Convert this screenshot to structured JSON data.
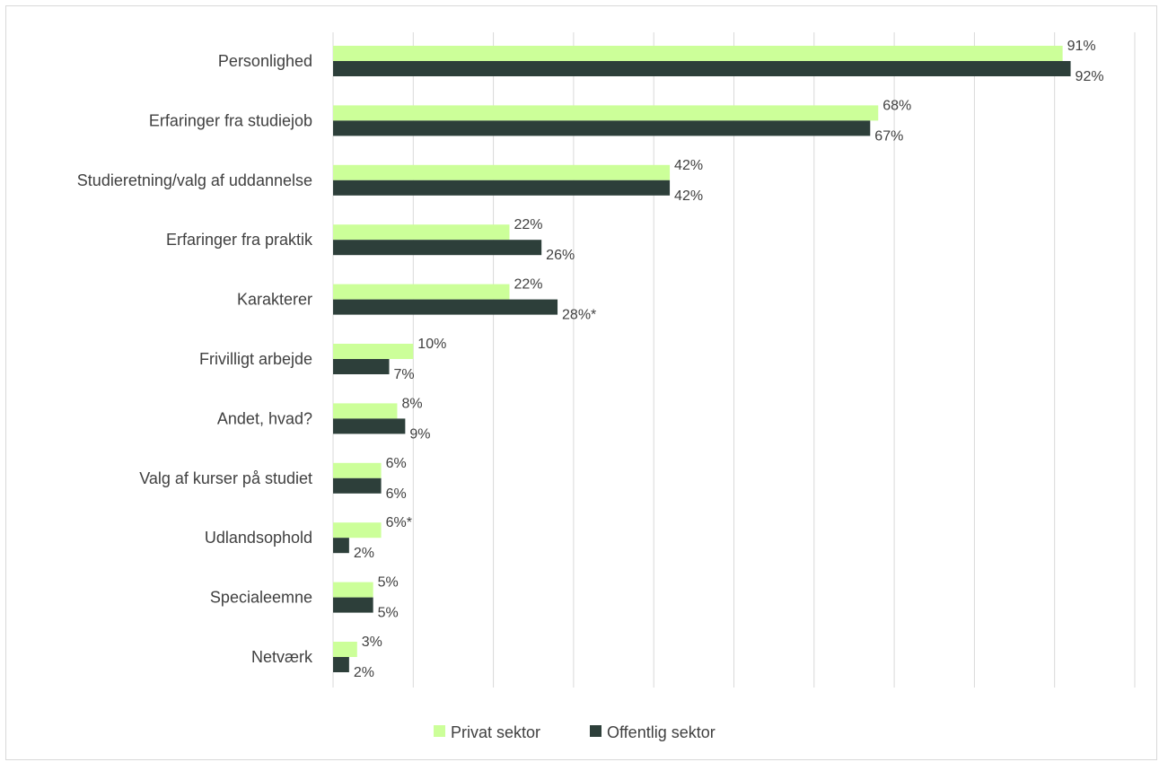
{
  "chart_data": {
    "type": "bar",
    "orientation": "horizontal",
    "categories": [
      "Personlighed",
      "Erfaringer fra studiejob",
      "Studieretning/valg af uddannelse",
      "Erfaringer fra praktik",
      "Karakterer",
      "Frivilligt arbejde",
      "Andet, hvad?",
      "Valg af kurser på studiet",
      "Udlandsophold",
      "Specialeemne",
      "Netværk"
    ],
    "series": [
      {
        "name": "Privat sektor",
        "color": "#ccff99",
        "values": [
          91,
          68,
          42,
          22,
          22,
          10,
          8,
          6,
          6,
          5,
          3
        ],
        "labels": [
          "91%",
          "68%",
          "42%",
          "22%",
          "22%",
          "10%",
          "8%",
          "6%",
          "6%*",
          "5%",
          "3%"
        ]
      },
      {
        "name": "Offentlig sektor",
        "color": "#2d3f3a",
        "values": [
          92,
          67,
          42,
          26,
          28,
          7,
          9,
          6,
          2,
          5,
          2
        ],
        "labels": [
          "92%",
          "67%",
          "42%",
          "26%",
          "28%*",
          "7%",
          "9%",
          "6%",
          "2%",
          "5%",
          "2%"
        ]
      }
    ],
    "xlim": [
      0,
      100
    ],
    "grid": true,
    "legend": "bottom-center",
    "title": "",
    "xlabel": "",
    "ylabel": ""
  }
}
